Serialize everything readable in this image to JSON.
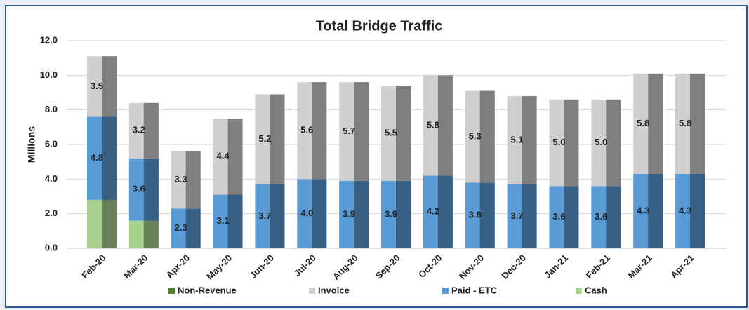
{
  "chart_data": {
    "type": "bar",
    "stacked": true,
    "title": "Total Bridge Traffic",
    "y_label": "Millions",
    "categories": [
      "Feb-20",
      "Mar-20",
      "Apr-20",
      "May-20",
      "Jun-20",
      "Jul-20",
      "Aug-20",
      "Sep-20",
      "Oct-20",
      "Nov-20",
      "Dec-20",
      "Jan-21",
      "Feb-21",
      "Mar-21",
      "Apr-21"
    ],
    "series": [
      {
        "name": "Non-Revenue",
        "color": "#548235",
        "values": [
          0,
          0,
          0,
          0,
          0,
          0,
          0,
          0,
          0,
          0,
          0,
          0,
          0,
          0,
          0
        ]
      },
      {
        "name": "Invoice",
        "color": "#d0cece",
        "values": [
          3.5,
          3.2,
          3.3,
          4.4,
          5.2,
          5.6,
          5.7,
          5.5,
          5.8,
          5.3,
          5.1,
          5.0,
          5.0,
          5.8,
          5.8
        ],
        "value_labels": [
          "3.5",
          "3.2",
          "3.3",
          "4.4",
          "5.2",
          "5.6",
          "5.7",
          "5.5",
          "5.8",
          "5.3",
          "5.1",
          "5.0",
          "5.0",
          "5.8",
          "5.8"
        ]
      },
      {
        "name": "Paid - ETC",
        "color": "#5b9bd5",
        "values": [
          4.8,
          3.6,
          2.3,
          3.1,
          3.7,
          4.0,
          3.9,
          3.9,
          4.2,
          3.8,
          3.7,
          3.6,
          3.6,
          4.3,
          4.3
        ],
        "value_labels": [
          "4.8",
          "3.6",
          "2.3",
          "3.1",
          "3.7",
          "4.0",
          "3.9",
          "3.9",
          "4.2",
          "3.8",
          "3.7",
          "3.6",
          "3.6",
          "4.3",
          "4.3"
        ]
      },
      {
        "name": "Cash",
        "color": "#a9d18e",
        "values": [
          2.8,
          1.6,
          0,
          0,
          0,
          0,
          0,
          0,
          0,
          0,
          0,
          0,
          0,
          0,
          0
        ]
      }
    ],
    "ylim": [
      0,
      12
    ],
    "yticks": [
      {
        "value": 0,
        "label": "0.0"
      },
      {
        "value": 2,
        "label": "2.0"
      },
      {
        "value": 4,
        "label": "4.0"
      },
      {
        "value": 6,
        "label": "6.0"
      },
      {
        "value": 8,
        "label": "8.0"
      },
      {
        "value": 10,
        "label": "10.0"
      },
      {
        "value": 12,
        "label": "12.0"
      }
    ],
    "grid": true,
    "legend": "bottom"
  }
}
